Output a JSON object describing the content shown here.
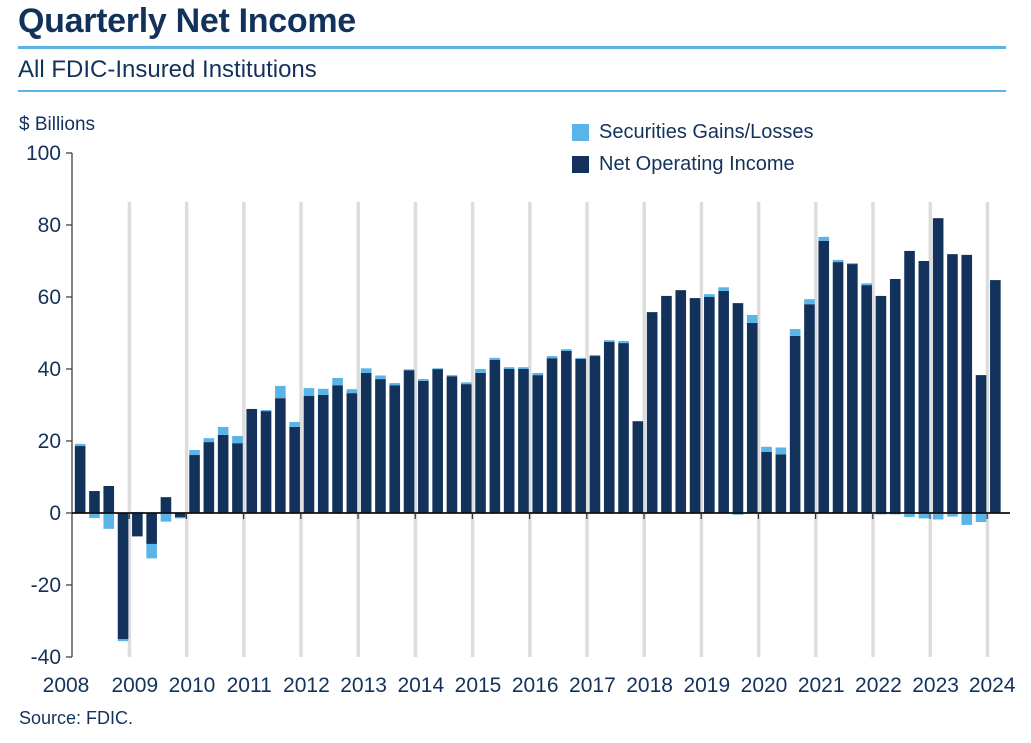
{
  "header": {
    "title": "Quarterly Net Income",
    "subtitle": "All FDIC-Insured Institutions",
    "source": "Source: FDIC."
  },
  "colors": {
    "net_operating_income": "#13325b",
    "securities_gains_losses": "#5ab4e8",
    "year_divider": "#dddddd",
    "rules": "#5ab4e8"
  },
  "chart_data": {
    "type": "bar",
    "stacked": true,
    "title": "Quarterly Net Income",
    "subtitle": "All FDIC-Insured Institutions",
    "ylabel": "$ Billions",
    "xlabel": "",
    "ylim": [
      -40,
      100
    ],
    "yticks": [
      100,
      80,
      60,
      40,
      20,
      0,
      -20,
      -40
    ],
    "ytick_labels": [
      "100",
      "80",
      "60",
      "40",
      "20",
      "0",
      "-20",
      "-40"
    ],
    "year_labels": [
      "2008",
      "2009",
      "2010",
      "2011",
      "2012",
      "2013",
      "2014",
      "2015",
      "2016",
      "2017",
      "2018",
      "2019",
      "2020",
      "2021",
      "2022",
      "2023",
      "2024"
    ],
    "legend": [
      "Securities Gains/Losses",
      "Net Operating Income"
    ],
    "legend_position": "top-right",
    "grid": false,
    "categories": [
      "2008Q1",
      "2008Q2",
      "2008Q3",
      "2008Q4",
      "2009Q1",
      "2009Q2",
      "2009Q3",
      "2009Q4",
      "2010Q1",
      "2010Q2",
      "2010Q3",
      "2010Q4",
      "2011Q1",
      "2011Q2",
      "2011Q3",
      "2011Q4",
      "2012Q1",
      "2012Q2",
      "2012Q3",
      "2012Q4",
      "2013Q1",
      "2013Q2",
      "2013Q3",
      "2013Q4",
      "2014Q1",
      "2014Q2",
      "2014Q3",
      "2014Q4",
      "2015Q1",
      "2015Q2",
      "2015Q3",
      "2015Q4",
      "2016Q1",
      "2016Q2",
      "2016Q3",
      "2016Q4",
      "2017Q1",
      "2017Q2",
      "2017Q3",
      "2017Q4",
      "2018Q1",
      "2018Q2",
      "2018Q3",
      "2018Q4",
      "2019Q1",
      "2019Q2",
      "2019Q3",
      "2019Q4",
      "2020Q1",
      "2020Q2",
      "2020Q3",
      "2020Q4",
      "2021Q1",
      "2021Q2",
      "2021Q3",
      "2021Q4",
      "2022Q1",
      "2022Q2",
      "2022Q3",
      "2022Q4",
      "2023Q1",
      "2023Q2",
      "2023Q3",
      "2023Q4",
      "2024Q1"
    ],
    "series": [
      {
        "name": "Net Operating Income",
        "values": [
          18.6,
          6.1,
          7.5,
          -35.0,
          -6.5,
          -8.6,
          4.4,
          -1.2,
          16.1,
          19.7,
          21.7,
          19.4,
          28.9,
          28.3,
          31.9,
          23.9,
          32.5,
          32.8,
          35.5,
          33.3,
          38.9,
          37.2,
          35.5,
          39.7,
          36.7,
          40.0,
          38.0,
          35.8,
          38.9,
          42.5,
          40.0,
          40.0,
          38.3,
          43.0,
          45.0,
          42.8,
          43.6,
          47.5,
          47.2,
          25.5,
          55.8,
          60.3,
          61.9,
          59.7,
          60.0,
          61.7,
          58.3,
          52.8,
          17.0,
          16.3,
          49.2,
          58.0,
          75.6,
          69.7,
          69.2,
          63.3,
          60.3,
          65.0,
          72.8,
          70.0,
          81.9,
          71.9,
          71.7,
          38.3,
          64.7
        ]
      },
      {
        "name": "Securities Gains/Losses",
        "values": [
          0.6,
          -1.4,
          -4.4,
          -0.6,
          0.3,
          -4.0,
          -2.4,
          -0.3,
          1.4,
          1.1,
          2.2,
          2.0,
          0.0,
          0.3,
          3.4,
          1.4,
          2.2,
          1.7,
          2.0,
          1.1,
          1.3,
          1.0,
          0.6,
          0.2,
          0.5,
          0.2,
          0.3,
          0.5,
          1.1,
          0.6,
          0.5,
          0.5,
          0.6,
          0.6,
          0.5,
          0.3,
          0.3,
          0.5,
          0.6,
          0.0,
          0.0,
          0.0,
          0.0,
          0.0,
          0.8,
          1.0,
          -0.5,
          2.2,
          1.4,
          1.9,
          1.9,
          1.4,
          1.1,
          0.6,
          0.2,
          0.5,
          -0.4,
          -0.4,
          -1.1,
          -1.5,
          -1.8,
          -1.0,
          -3.3,
          -2.5,
          0.0
        ]
      }
    ]
  }
}
